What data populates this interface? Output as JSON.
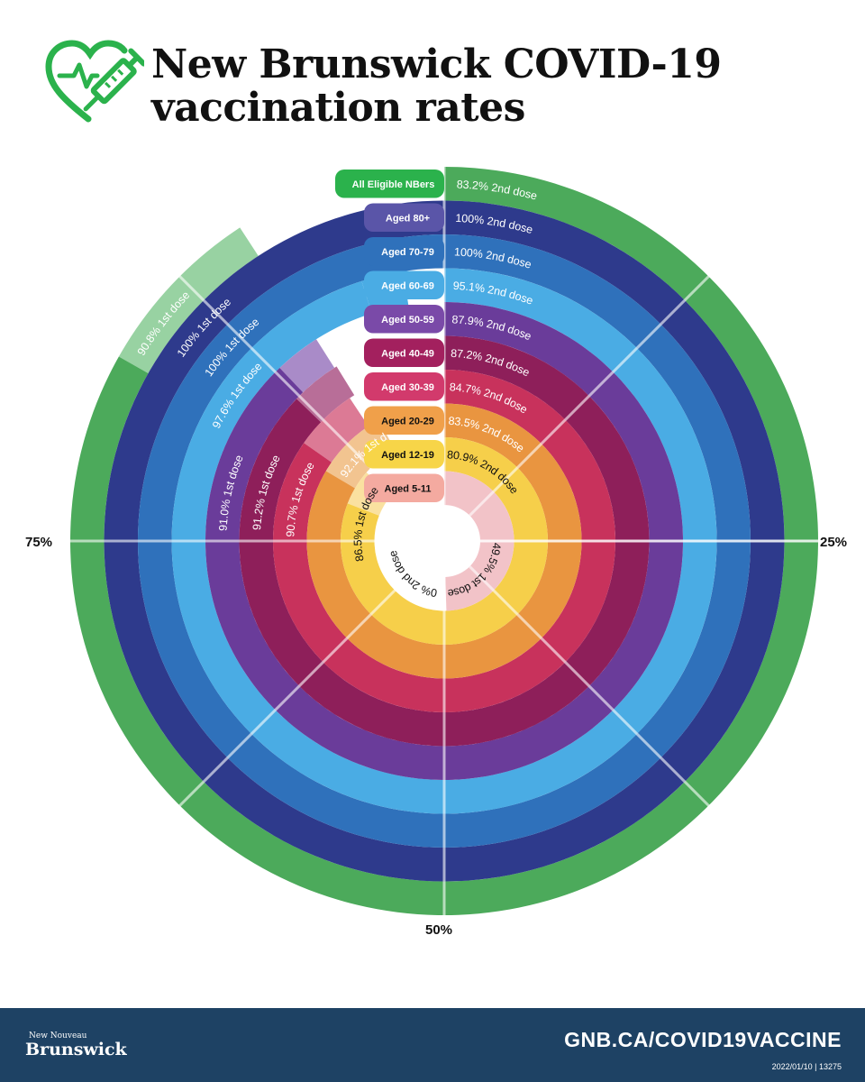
{
  "header": {
    "title_line1": "New Brunswick COVID-19",
    "title_line2": "vaccination rates"
  },
  "footer": {
    "brand_top": "New Nouveau",
    "brand_main": "Brunswick",
    "site": "GNB.CA/COVID19VACCINE",
    "stamp": "2022/01/10 | 13275"
  },
  "colors": {
    "accent_green": "#2bb24c",
    "footer_bg": "#1e4264",
    "title": "#111111"
  },
  "chart_data": {
    "type": "radial-bar",
    "title": "New Brunswick COVID-19 vaccination rates",
    "axis_ticks": [
      "25%",
      "50%",
      "75%"
    ],
    "axis_range": [
      0,
      100
    ],
    "direction": "clockwise from top",
    "categories": [
      "All Eligible NBers",
      "Aged 80+",
      "Aged 70-79",
      "Aged 60-69",
      "Aged 50-59",
      "Aged 40-49",
      "Aged 30-39",
      "Aged 20-29",
      "Aged 12-19",
      "Aged 5-11"
    ],
    "series": [
      {
        "name": "2nd dose",
        "values": [
          83.2,
          100,
          100,
          95.1,
          87.9,
          87.2,
          84.7,
          83.5,
          80.9,
          0
        ],
        "labels": [
          "83.2% 2nd dose",
          "100% 2nd dose",
          "100% 2nd dose",
          "95.1% 2nd dose",
          "87.9% 2nd dose",
          "87.2% 2nd dose",
          "84.7% 2nd dose",
          "83.5% 2nd dose",
          "80.9% 2nd dose",
          "0% 2nd dose"
        ]
      },
      {
        "name": "1st dose",
        "values": [
          90.8,
          100,
          100,
          97.6,
          91.0,
          91.2,
          90.7,
          92.1,
          86.5,
          49.5
        ],
        "labels": [
          "90.8% 1st dose",
          "100% 1st dose",
          "100% 1st dose",
          "97.6% 1st dose",
          "91.0% 1st dose",
          "91.2% 1st dose",
          "90.7% 1st dose",
          "92.1% 1st dose",
          "86.5% 1st dose",
          "49.5% 1st dose"
        ]
      }
    ],
    "ring_colors": [
      "#4caa5b",
      "#2e3a8c",
      "#2f71bb",
      "#4aace4",
      "#6a3c9a",
      "#8e1f5a",
      "#c8325c",
      "#e99540",
      "#f6cf4a",
      "#f2c3c8"
    ],
    "first_dose_colors": [
      "#98d2a2",
      "#4a4f9e",
      "#2f71bb",
      "#4aace4",
      "#a98bc8",
      "#b86e98",
      "#dc7a95",
      "#f2c490",
      "#fae1a0",
      "#f2c3c8"
    ],
    "label_colors": [
      "#ffffff",
      "#ffffff",
      "#ffffff",
      "#ffffff",
      "#ffffff",
      "#ffffff",
      "#ffffff",
      "#ffffff",
      "#111111",
      "#111111"
    ],
    "tab_colors": [
      "#2bb24c",
      "#5a55a8",
      "#2f71bb",
      "#4aace4",
      "#7a4aa8",
      "#a3205e",
      "#d23a6c",
      "#f0a04a",
      "#f7d548",
      "#f4aaa0"
    ]
  }
}
